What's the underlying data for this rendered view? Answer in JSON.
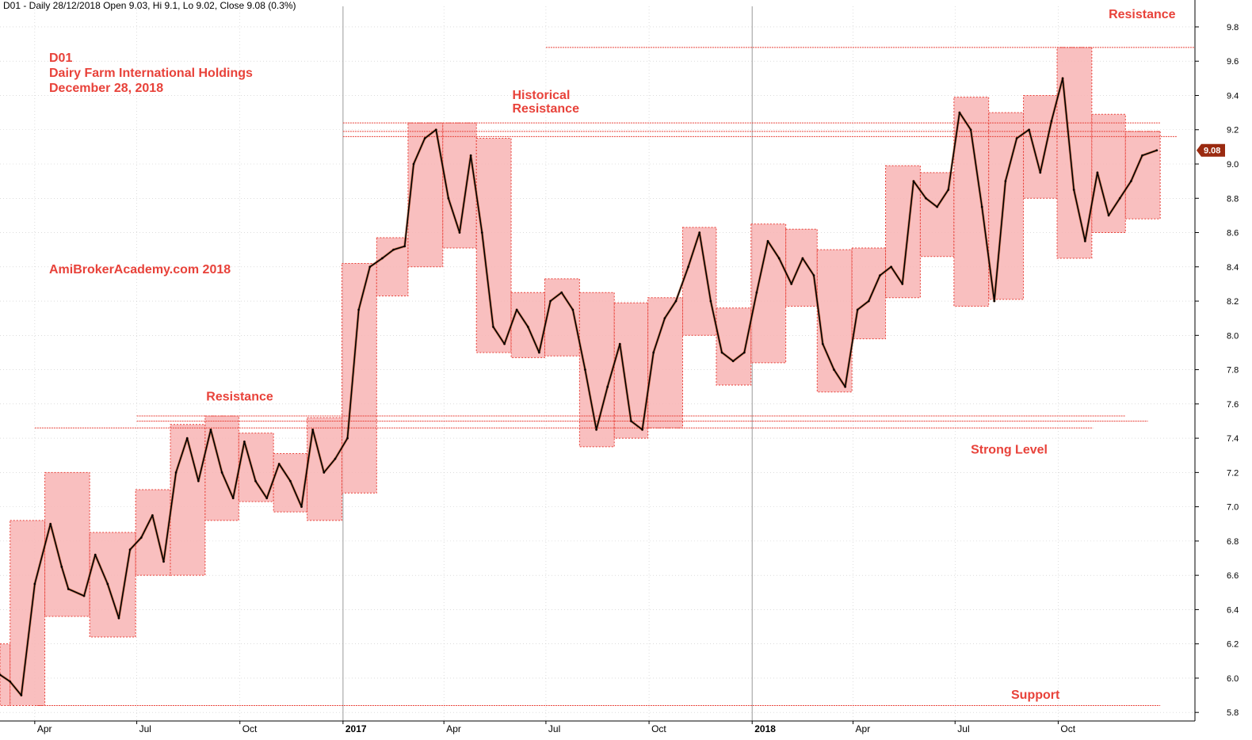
{
  "header": {
    "text": "D01 - Daily 28/12/2018 Open 9.03, Hi 9.1, Lo 9.02, Close 9.08 (0.3%)"
  },
  "chart_data": {
    "type": "line",
    "title": "D01 Dairy Farm International Holdings December 28, 2018",
    "title_lines": [
      "D01",
      "Dairy Farm International Holdings",
      "December 28, 2018"
    ],
    "watermark": "AmiBrokerAcademy.com  2018",
    "xlabel": "",
    "ylabel": "",
    "xlim": [
      "2016-03-01",
      "2019-01-31"
    ],
    "ylim": [
      5.75,
      9.92
    ],
    "y_ticks": [
      5.8,
      6.0,
      6.2,
      6.4,
      6.6,
      6.8,
      7.0,
      7.2,
      7.4,
      7.6,
      7.8,
      8.0,
      8.2,
      8.4,
      8.6,
      8.8,
      9.0,
      9.2,
      9.4,
      9.6,
      9.8
    ],
    "x_ticks": [
      {
        "date": "2016-04-01",
        "label": "Apr",
        "year": false
      },
      {
        "date": "2016-07-01",
        "label": "Jul",
        "year": false
      },
      {
        "date": "2016-10-01",
        "label": "Oct",
        "year": false
      },
      {
        "date": "2017-01-01",
        "label": "2017",
        "year": true
      },
      {
        "date": "2017-04-01",
        "label": "Apr",
        "year": false
      },
      {
        "date": "2017-07-01",
        "label": "Jul",
        "year": false
      },
      {
        "date": "2017-10-01",
        "label": "Oct",
        "year": false
      },
      {
        "date": "2018-01-01",
        "label": "2018",
        "year": true
      },
      {
        "date": "2018-04-01",
        "label": "Apr",
        "year": false
      },
      {
        "date": "2018-07-01",
        "label": "Jul",
        "year": false
      },
      {
        "date": "2018-10-01",
        "label": "Oct",
        "year": false
      }
    ],
    "grid": true,
    "last_price": {
      "value": 9.08,
      "label": "9.08"
    },
    "series": [
      {
        "name": "D01",
        "x": [
          "2016-03-01",
          "2016-03-10",
          "2016-03-20",
          "2016-04-01",
          "2016-04-15",
          "2016-04-25",
          "2016-05-01",
          "2016-05-15",
          "2016-05-25",
          "2016-06-05",
          "2016-06-15",
          "2016-06-25",
          "2016-07-05",
          "2016-07-15",
          "2016-07-25",
          "2016-08-05",
          "2016-08-15",
          "2016-08-25",
          "2016-09-05",
          "2016-09-15",
          "2016-09-25",
          "2016-10-05",
          "2016-10-15",
          "2016-10-25",
          "2016-11-05",
          "2016-11-15",
          "2016-11-25",
          "2016-12-05",
          "2016-12-15",
          "2016-12-25",
          "2017-01-05",
          "2017-01-15",
          "2017-01-25",
          "2017-02-05",
          "2017-02-15",
          "2017-02-25",
          "2017-03-05",
          "2017-03-15",
          "2017-03-25",
          "2017-04-05",
          "2017-04-15",
          "2017-04-25",
          "2017-05-05",
          "2017-05-15",
          "2017-05-25",
          "2017-06-05",
          "2017-06-15",
          "2017-06-25",
          "2017-07-05",
          "2017-07-15",
          "2017-07-25",
          "2017-08-05",
          "2017-08-15",
          "2017-08-25",
          "2017-09-05",
          "2017-09-15",
          "2017-09-25",
          "2017-10-05",
          "2017-10-15",
          "2017-10-25",
          "2017-11-05",
          "2017-11-15",
          "2017-11-25",
          "2017-12-05",
          "2017-12-15",
          "2017-12-25",
          "2018-01-05",
          "2018-01-15",
          "2018-01-25",
          "2018-02-05",
          "2018-02-15",
          "2018-02-25",
          "2018-03-05",
          "2018-03-15",
          "2018-03-25",
          "2018-04-05",
          "2018-04-15",
          "2018-04-25",
          "2018-05-05",
          "2018-05-15",
          "2018-05-25",
          "2018-06-05",
          "2018-06-15",
          "2018-06-25",
          "2018-07-05",
          "2018-07-15",
          "2018-07-25",
          "2018-08-05",
          "2018-08-15",
          "2018-08-25",
          "2018-09-05",
          "2018-09-15",
          "2018-09-25",
          "2018-10-05",
          "2018-10-15",
          "2018-10-25",
          "2018-11-05",
          "2018-11-15",
          "2018-11-25",
          "2018-12-05",
          "2018-12-15",
          "2018-12-28"
        ],
        "values": [
          6.02,
          5.98,
          5.9,
          6.55,
          6.9,
          6.65,
          6.52,
          6.48,
          6.72,
          6.55,
          6.35,
          6.75,
          6.82,
          6.95,
          6.68,
          7.2,
          7.4,
          7.15,
          7.45,
          7.2,
          7.05,
          7.38,
          7.15,
          7.05,
          7.25,
          7.15,
          7.0,
          7.45,
          7.2,
          7.28,
          7.4,
          8.15,
          8.4,
          8.45,
          8.5,
          8.52,
          9.0,
          9.15,
          9.2,
          8.8,
          8.6,
          9.05,
          8.6,
          8.05,
          7.95,
          8.15,
          8.05,
          7.9,
          8.2,
          8.25,
          8.15,
          7.8,
          7.45,
          7.7,
          7.95,
          7.5,
          7.45,
          7.9,
          8.1,
          8.2,
          8.4,
          8.6,
          8.2,
          7.9,
          7.85,
          7.9,
          8.25,
          8.55,
          8.45,
          8.3,
          8.45,
          8.35,
          7.95,
          7.8,
          7.7,
          8.15,
          8.2,
          8.35,
          8.4,
          8.3,
          8.9,
          8.8,
          8.75,
          8.85,
          9.3,
          9.2,
          8.75,
          8.2,
          8.9,
          9.15,
          9.2,
          8.95,
          9.25,
          9.5,
          8.85,
          8.55,
          8.95,
          8.7,
          8.8,
          8.9,
          9.05,
          9.08
        ]
      }
    ],
    "range_boxes": [
      {
        "start": "2016-03-01",
        "end": "2016-03-10",
        "low": 5.84,
        "high": 6.2
      },
      {
        "start": "2016-03-10",
        "end": "2016-04-10",
        "low": 5.84,
        "high": 6.92
      },
      {
        "start": "2016-04-10",
        "end": "2016-05-20",
        "low": 6.36,
        "high": 7.2
      },
      {
        "start": "2016-05-20",
        "end": "2016-06-30",
        "low": 6.24,
        "high": 6.85
      },
      {
        "start": "2016-06-30",
        "end": "2016-07-31",
        "low": 6.6,
        "high": 7.1
      },
      {
        "start": "2016-07-31",
        "end": "2016-08-31",
        "low": 6.6,
        "high": 7.48
      },
      {
        "start": "2016-08-31",
        "end": "2016-09-30",
        "low": 6.92,
        "high": 7.53
      },
      {
        "start": "2016-09-30",
        "end": "2016-10-31",
        "low": 7.03,
        "high": 7.43
      },
      {
        "start": "2016-10-31",
        "end": "2016-11-30",
        "low": 6.97,
        "high": 7.31
      },
      {
        "start": "2016-11-30",
        "end": "2016-12-31",
        "low": 6.92,
        "high": 7.52
      },
      {
        "start": "2016-12-31",
        "end": "2017-01-31",
        "low": 7.08,
        "high": 8.42
      },
      {
        "start": "2017-01-31",
        "end": "2017-02-28",
        "low": 8.23,
        "high": 8.57
      },
      {
        "start": "2017-02-28",
        "end": "2017-03-31",
        "low": 8.4,
        "high": 9.24
      },
      {
        "start": "2017-03-31",
        "end": "2017-04-30",
        "low": 8.51,
        "high": 9.24
      },
      {
        "start": "2017-04-30",
        "end": "2017-05-31",
        "low": 7.9,
        "high": 9.15
      },
      {
        "start": "2017-05-31",
        "end": "2017-06-30",
        "low": 7.87,
        "high": 8.25
      },
      {
        "start": "2017-06-30",
        "end": "2017-07-31",
        "low": 7.88,
        "high": 8.33
      },
      {
        "start": "2017-07-31",
        "end": "2017-08-31",
        "low": 7.35,
        "high": 8.25
      },
      {
        "start": "2017-08-31",
        "end": "2017-09-30",
        "low": 7.4,
        "high": 8.19
      },
      {
        "start": "2017-09-30",
        "end": "2017-10-31",
        "low": 7.46,
        "high": 8.22
      },
      {
        "start": "2017-10-31",
        "end": "2017-11-30",
        "low": 8.0,
        "high": 8.63
      },
      {
        "start": "2017-11-30",
        "end": "2017-12-31",
        "low": 7.71,
        "high": 8.16
      },
      {
        "start": "2017-12-31",
        "end": "2018-01-31",
        "low": 7.84,
        "high": 8.65
      },
      {
        "start": "2018-01-31",
        "end": "2018-02-28",
        "low": 8.17,
        "high": 8.62
      },
      {
        "start": "2018-02-28",
        "end": "2018-03-31",
        "low": 7.67,
        "high": 8.5
      },
      {
        "start": "2018-03-31",
        "end": "2018-04-30",
        "low": 7.98,
        "high": 8.51
      },
      {
        "start": "2018-04-30",
        "end": "2018-05-31",
        "low": 8.22,
        "high": 8.99
      },
      {
        "start": "2018-05-31",
        "end": "2018-06-30",
        "low": 8.46,
        "high": 8.95
      },
      {
        "start": "2018-06-30",
        "end": "2018-07-31",
        "low": 8.17,
        "high": 9.39
      },
      {
        "start": "2018-07-31",
        "end": "2018-08-31",
        "low": 8.21,
        "high": 9.3
      },
      {
        "start": "2018-08-31",
        "end": "2018-09-30",
        "low": 8.8,
        "high": 9.4
      },
      {
        "start": "2018-09-30",
        "end": "2018-10-31",
        "low": 8.45,
        "high": 9.68
      },
      {
        "start": "2018-10-31",
        "end": "2018-11-30",
        "low": 8.6,
        "high": 9.29
      },
      {
        "start": "2018-11-30",
        "end": "2018-12-31",
        "low": 8.68,
        "high": 9.19
      }
    ],
    "level_lines": [
      {
        "start": "2017-07-01",
        "end": "2019-01-31",
        "value": 9.68
      },
      {
        "start": "2017-01-01",
        "end": "2018-12-31",
        "value": 9.24
      },
      {
        "start": "2017-01-01",
        "end": "2018-12-31",
        "value": 9.19
      },
      {
        "start": "2017-01-01",
        "end": "2019-01-15",
        "value": 9.16
      },
      {
        "start": "2016-07-01",
        "end": "2018-11-30",
        "value": 7.53
      },
      {
        "start": "2016-07-01",
        "end": "2018-12-20",
        "value": 7.5
      },
      {
        "start": "2016-04-01",
        "end": "2018-11-01",
        "value": 7.46
      },
      {
        "start": "2016-04-01",
        "end": "2018-12-31",
        "value": 5.84
      }
    ],
    "annotations": [
      {
        "text": "Resistance",
        "date": "2018-11-15",
        "value": 9.85
      },
      {
        "text": "Historical",
        "date": "2017-06-01",
        "value": 9.38
      },
      {
        "text": "Resistance",
        "date": "2017-06-01",
        "value": 9.3
      },
      {
        "text": "Resistance",
        "date": "2016-09-01",
        "value": 7.62
      },
      {
        "text": "Strong Level",
        "date": "2018-07-15",
        "value": 7.31
      },
      {
        "text": "Support",
        "date": "2018-08-20",
        "value": 5.88
      }
    ]
  },
  "colors": {
    "background": "#ffffff",
    "price_line": "#000000",
    "price_up": "#c0501c",
    "box_fill": "#f8b4b4",
    "box_border": "#e8423a",
    "annotation": "#e8423a",
    "grid": "#c8c8c8",
    "price_tag": "#9a2a10"
  }
}
